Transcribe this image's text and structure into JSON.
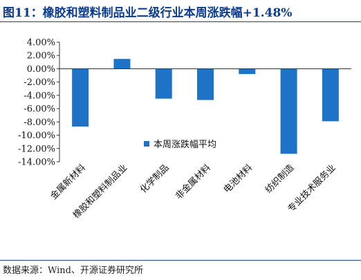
{
  "title": "图11：橡胶和塑料制品业二级行业本周涨跌幅+1.48%",
  "source": "数据来源：Wind、开源证券研究所",
  "colors": {
    "bar": "#1f73c6",
    "axis": "#333333",
    "title": "#0b3c8c"
  },
  "chart_data": {
    "type": "bar",
    "categories": [
      "金属新材料",
      "橡胶和塑料制品业",
      "化学制品",
      "非金属材料",
      "电池材料",
      "纺织制造",
      "专业技术服务业"
    ],
    "series": [
      {
        "name": "本周涨跌幅平均",
        "values": [
          -8.7,
          1.48,
          -4.5,
          -4.7,
          -0.8,
          -12.8,
          -7.9
        ]
      }
    ],
    "ylim": [
      -14,
      4
    ],
    "yticks": [
      4,
      2,
      0,
      -2,
      -4,
      -6,
      -8,
      -10,
      -12,
      -14
    ],
    "ytick_labels": [
      "4.00%",
      "2.00%",
      "0.00%",
      "-2.00%",
      "-4.00%",
      "-6.00%",
      "-8.00%",
      "-10.00%",
      "-12.00%",
      "-14.00%"
    ],
    "legend": {
      "label": "本周涨跌幅平均",
      "position": "center-right"
    },
    "grid": false
  }
}
